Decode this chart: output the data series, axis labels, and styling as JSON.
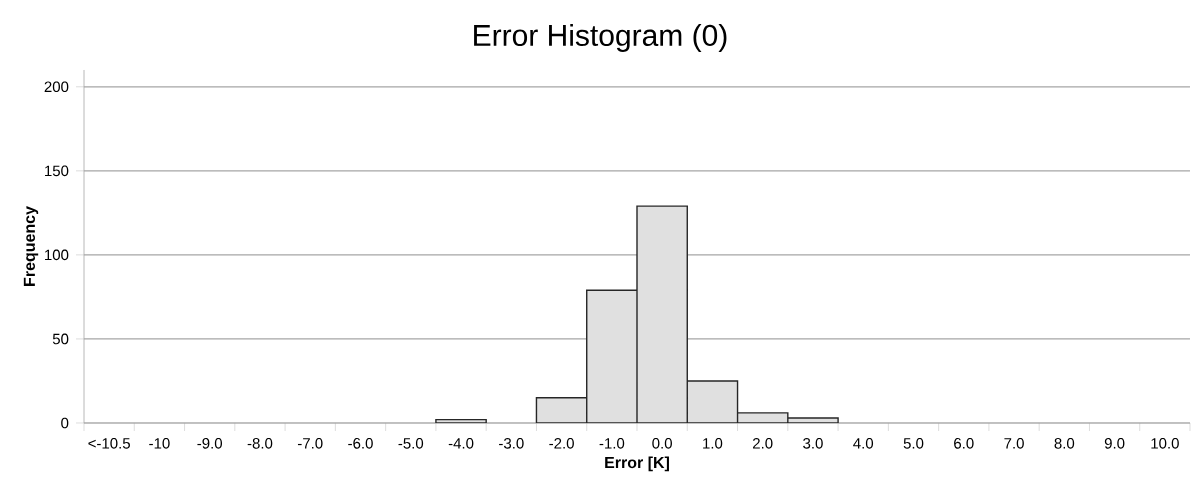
{
  "chart_data": {
    "type": "bar",
    "title": "Error Histogram (0)",
    "xlabel": "Error [K]",
    "ylabel": "Frequency",
    "categories": [
      "<-10.5",
      "-10",
      "-9.0",
      "-8.0",
      "-7.0",
      "-6.0",
      "-5.0",
      "-4.0",
      "-3.0",
      "-2.0",
      "-1.0",
      "0.0",
      "1.0",
      "2.0",
      "3.0",
      "4.0",
      "5.0",
      "6.0",
      "7.0",
      "8.0",
      "9.0",
      "10.0"
    ],
    "values": [
      0,
      0,
      0,
      0,
      0,
      0,
      0,
      2,
      0,
      15,
      79,
      129,
      25,
      6,
      3,
      0,
      0,
      0,
      0,
      0,
      0,
      0
    ],
    "color": "#e0e0e0",
    "ylim": [
      0,
      210
    ],
    "yticks": [
      0,
      50,
      100,
      150,
      200
    ],
    "grid": "y"
  }
}
